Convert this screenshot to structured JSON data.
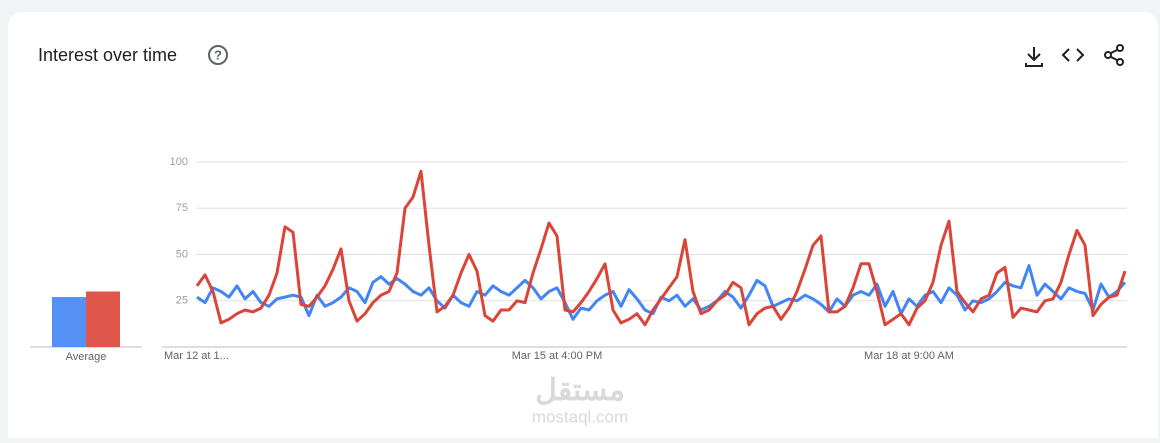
{
  "chart_data": [
    {
      "type": "line",
      "title": "Interest over time",
      "categories": [
        "Mar 12 at 1...",
        null,
        null,
        null,
        null,
        null,
        null,
        null,
        null,
        null,
        null,
        null,
        null,
        null,
        null,
        null,
        null,
        null,
        null,
        null,
        null,
        null,
        null,
        null,
        null,
        null,
        null,
        null,
        null,
        null,
        null,
        null,
        null,
        null,
        null,
        null,
        null,
        null,
        null,
        null,
        null,
        null,
        null,
        null,
        null,
        "Mar 15 at 4:00 PM",
        null,
        null,
        null,
        null,
        null,
        null,
        null,
        null,
        null,
        null,
        null,
        null,
        null,
        null,
        null,
        null,
        null,
        null,
        null,
        null,
        null,
        null,
        null,
        null,
        null,
        null,
        null,
        null,
        null,
        null,
        null,
        null,
        null,
        null,
        null,
        null,
        null,
        null,
        null,
        null,
        null,
        null,
        null,
        "Mar 18 at 9:00 AM",
        null,
        null,
        null,
        null,
        null,
        null,
        null,
        null,
        null,
        null,
        null,
        null,
        null,
        null,
        null,
        null,
        null,
        null,
        null,
        null,
        null,
        null,
        null,
        null,
        null,
        null,
        null
      ],
      "series": [
        {
          "color": "#4285f4",
          "values": [
            27,
            24,
            32,
            30,
            27,
            33,
            26,
            30,
            24,
            22,
            26,
            27,
            28,
            27,
            17,
            28,
            22,
            24,
            27,
            32,
            30,
            24,
            35,
            38,
            34,
            37,
            34,
            30,
            28,
            32,
            25,
            21,
            28,
            24,
            22,
            30,
            28,
            33,
            30,
            28,
            32,
            36,
            32,
            26,
            30,
            32,
            24,
            15,
            21,
            20,
            25,
            28,
            30,
            22,
            31,
            26,
            20,
            18,
            27,
            25,
            28,
            22,
            26,
            20,
            22,
            25,
            30,
            27,
            21,
            28,
            36,
            33,
            22,
            24,
            26,
            25,
            28,
            26,
            23,
            19,
            26,
            22,
            28,
            30,
            28,
            34,
            22,
            30,
            18,
            26,
            22,
            28,
            30,
            24,
            32,
            28,
            20,
            25,
            24,
            26,
            30,
            35,
            33,
            32,
            44,
            28,
            34,
            30,
            26,
            32,
            30,
            29,
            20,
            34,
            27,
            30,
            35
          ]
        },
        {
          "color": "#db4437",
          "values": [
            33,
            39,
            30,
            13,
            15,
            18,
            20,
            19,
            21,
            28,
            40,
            65,
            62,
            23,
            22,
            27,
            33,
            42,
            53,
            25,
            14,
            18,
            24,
            28,
            30,
            40,
            75,
            81,
            95,
            55,
            19,
            22,
            28,
            40,
            50,
            41,
            17,
            14,
            20,
            20,
            25,
            24,
            40,
            53,
            67,
            60,
            20,
            19,
            24,
            30,
            37,
            45,
            20,
            13,
            15,
            18,
            12,
            20,
            26,
            32,
            38,
            58,
            30,
            18,
            20,
            25,
            28,
            35,
            32,
            12,
            18,
            21,
            22,
            15,
            21,
            30,
            42,
            55,
            60,
            19,
            19,
            22,
            32,
            45,
            45,
            30,
            12,
            15,
            18,
            12,
            21,
            25,
            35,
            55,
            68,
            30,
            24,
            19,
            26,
            28,
            40,
            43,
            16,
            21,
            20,
            19,
            25,
            26,
            35,
            50,
            63,
            55,
            17,
            23,
            27,
            28,
            41
          ]
        }
      ],
      "ylim": [
        0,
        100
      ],
      "yticks": [
        25,
        50,
        75,
        100
      ],
      "grid": true
    },
    {
      "type": "bar",
      "categories": [
        "Average"
      ],
      "series": [
        {
          "color": "#4285f4",
          "values": [
            27
          ]
        },
        {
          "color": "#db4437",
          "values": [
            30
          ]
        }
      ],
      "ylim": [
        0,
        100
      ]
    }
  ],
  "watermark": {
    "arabic": "مستقل",
    "latin": "mostaql.com"
  }
}
